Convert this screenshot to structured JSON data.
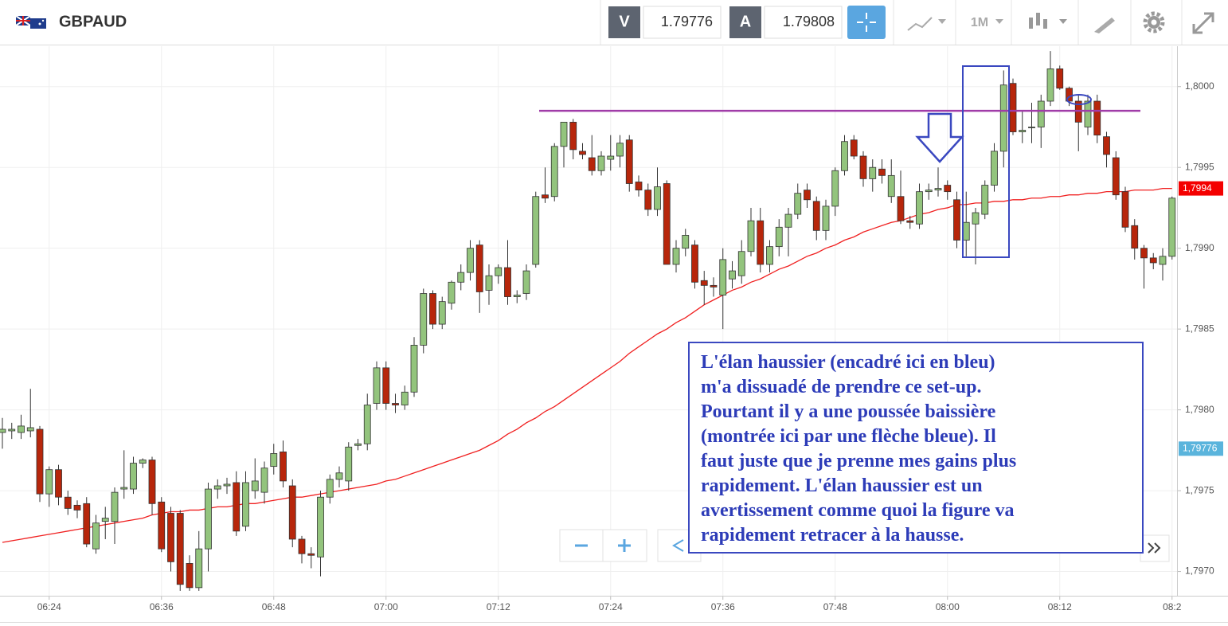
{
  "toolbar": {
    "symbol": "GBPAUD",
    "sell_label": "V",
    "sell_price": "1.79776",
    "buy_label": "A",
    "buy_price": "1.79808",
    "timeframe": "1M"
  },
  "chart_data": {
    "type": "candlestick",
    "categories": [
      null,
      null,
      null,
      null,
      null,
      "06:24",
      null,
      null,
      null,
      null,
      null,
      null,
      null,
      null,
      null,
      null,
      null,
      "06:36",
      null,
      null,
      null,
      null,
      null,
      null,
      null,
      null,
      null,
      null,
      null,
      "06:48",
      null,
      null,
      null,
      null,
      null,
      null,
      null,
      null,
      null,
      null,
      null,
      "07:00",
      null,
      null,
      null,
      null,
      null,
      null,
      null,
      null,
      null,
      null,
      null,
      "07:12",
      null,
      null,
      null,
      null,
      null,
      null,
      null,
      null,
      null,
      null,
      null,
      "07:24",
      null,
      null,
      null,
      null,
      null,
      null,
      null,
      null,
      null,
      null,
      null,
      "07:36",
      null,
      null,
      null,
      null,
      null,
      null,
      null,
      null,
      null,
      null,
      null,
      "07:48",
      null,
      null,
      null,
      null,
      null,
      null,
      null,
      null,
      null,
      null,
      null,
      "08:00",
      null,
      null,
      null,
      null,
      null,
      null,
      null,
      null,
      null,
      null,
      null,
      "08:12",
      null,
      null,
      null,
      null,
      null,
      null,
      null,
      null,
      null,
      null,
      null,
      "08:2"
    ],
    "ohlc": [
      [
        1.79786,
        1.79795,
        1.79776,
        1.79788
      ],
      [
        1.79787,
        1.79792,
        1.79782,
        1.79788
      ],
      [
        1.79786,
        1.79797,
        1.79782,
        1.7979
      ],
      [
        1.79787,
        1.79813,
        1.79783,
        1.79789
      ],
      [
        1.79788,
        1.7979,
        1.79743,
        1.79748
      ],
      [
        1.79748,
        1.79765,
        1.7974,
        1.79763
      ],
      [
        1.79763,
        1.79766,
        1.79741,
        1.79746
      ],
      [
        1.79746,
        1.7975,
        1.79735,
        1.79739
      ],
      [
        1.79741,
        1.79744,
        1.79733,
        1.79738
      ],
      [
        1.79742,
        1.79746,
        1.79715,
        1.79717
      ],
      [
        1.79714,
        1.79735,
        1.79711,
        1.7973
      ],
      [
        1.79731,
        1.7974,
        1.7972,
        1.79733
      ],
      [
        1.79731,
        1.79752,
        1.79717,
        1.79749
      ],
      [
        1.79751,
        1.79775,
        1.79745,
        1.79752
      ],
      [
        1.79751,
        1.79771,
        1.79748,
        1.79767
      ],
      [
        1.79767,
        1.7977,
        1.79764,
        1.79769
      ],
      [
        1.79769,
        1.79771,
        1.79735,
        1.79742
      ],
      [
        1.79743,
        1.79746,
        1.79712,
        1.79714
      ],
      [
        1.79736,
        1.7974,
        1.797,
        1.79706
      ],
      [
        1.79736,
        1.79738,
        1.79688,
        1.79692
      ],
      [
        1.79705,
        1.7971,
        1.79688,
        1.7969
      ],
      [
        1.7969,
        1.79725,
        1.79688,
        1.79714
      ],
      [
        1.79714,
        1.79755,
        1.797,
        1.79751
      ],
      [
        1.79751,
        1.79757,
        1.79745,
        1.79753
      ],
      [
        1.79753,
        1.79758,
        1.79748,
        1.79754
      ],
      [
        1.79755,
        1.79762,
        1.79722,
        1.79725
      ],
      [
        1.79728,
        1.79762,
        1.79725,
        1.79755
      ],
      [
        1.7975,
        1.7977,
        1.79745,
        1.79756
      ],
      [
        1.79749,
        1.79768,
        1.79742,
        1.79764
      ],
      [
        1.79765,
        1.79779,
        1.7976,
        1.79773
      ],
      [
        1.79774,
        1.79781,
        1.79752,
        1.79756
      ],
      [
        1.79753,
        1.79757,
        1.79715,
        1.7972
      ],
      [
        1.7972,
        1.79722,
        1.79705,
        1.79711
      ],
      [
        1.79711,
        1.79715,
        1.79702,
        1.7971
      ],
      [
        1.79709,
        1.7975,
        1.79697,
        1.79746
      ],
      [
        1.79746,
        1.7976,
        1.79742,
        1.79757
      ],
      [
        1.79757,
        1.79765,
        1.79752,
        1.79761
      ],
      [
        1.79756,
        1.7978,
        1.7975,
        1.79777
      ],
      [
        1.79778,
        1.79782,
        1.79775,
        1.79779
      ],
      [
        1.79779,
        1.7981,
        1.79775,
        1.79803
      ],
      [
        1.79804,
        1.7983,
        1.798,
        1.79826
      ],
      [
        1.79826,
        1.7983,
        1.798,
        1.79804
      ],
      [
        1.79804,
        1.7981,
        1.79798,
        1.79803
      ],
      [
        1.79803,
        1.79815,
        1.798,
        1.79811
      ],
      [
        1.79811,
        1.79845,
        1.79808,
        1.7984
      ],
      [
        1.7984,
        1.79875,
        1.79835,
        1.79872
      ],
      [
        1.79872,
        1.79874,
        1.7985,
        1.79853
      ],
      [
        1.79853,
        1.7987,
        1.7985,
        1.79867
      ],
      [
        1.79866,
        1.7988,
        1.79862,
        1.79879
      ],
      [
        1.79879,
        1.7989,
        1.79874,
        1.79885
      ],
      [
        1.79885,
        1.79905,
        1.7988,
        1.799
      ],
      [
        1.79902,
        1.79905,
        1.7986,
        1.79873
      ],
      [
        1.79874,
        1.7989,
        1.79865,
        1.79883
      ],
      [
        1.79883,
        1.7989,
        1.79878,
        1.79888
      ],
      [
        1.79888,
        1.79905,
        1.79865,
        1.7987
      ],
      [
        1.7987,
        1.79874,
        1.79866,
        1.79871
      ],
      [
        1.79872,
        1.7989,
        1.79868,
        1.79886
      ],
      [
        1.7989,
        1.79935,
        1.79888,
        1.79932
      ],
      [
        1.79933,
        1.7995,
        1.79928,
        1.79931
      ],
      [
        1.79932,
        1.79965,
        1.79929,
        1.79963
      ],
      [
        1.79963,
        1.79978,
        1.7995,
        1.79978
      ],
      [
        1.79978,
        1.7998,
        1.79955,
        1.79961
      ],
      [
        1.7996,
        1.79965,
        1.79955,
        1.79958
      ],
      [
        1.79956,
        1.7997,
        1.79945,
        1.79948
      ],
      [
        1.79948,
        1.7996,
        1.79945,
        1.79957
      ],
      [
        1.79955,
        1.7997,
        1.79948,
        1.79957
      ],
      [
        1.79957,
        1.7997,
        1.7995,
        1.79965
      ],
      [
        1.79967,
        1.7997,
        1.79935,
        1.7994
      ],
      [
        1.79941,
        1.79945,
        1.79932,
        1.79936
      ],
      [
        1.79936,
        1.7994,
        1.7992,
        1.79924
      ],
      [
        1.79924,
        1.7995,
        1.7992,
        1.79938
      ],
      [
        1.7994,
        1.79942,
        1.7989,
        1.7989
      ],
      [
        1.7989,
        1.79905,
        1.79885,
        1.799
      ],
      [
        1.799,
        1.79912,
        1.79895,
        1.79908
      ],
      [
        1.79902,
        1.79905,
        1.79875,
        1.79879
      ],
      [
        1.7988,
        1.79886,
        1.79865,
        1.79877
      ],
      [
        1.79877,
        1.79882,
        1.7987,
        1.79876
      ],
      [
        1.79871,
        1.799,
        1.7985,
        1.79893
      ],
      [
        1.79881,
        1.79892,
        1.79875,
        1.79886
      ],
      [
        1.79883,
        1.79905,
        1.79878,
        1.79898
      ],
      [
        1.79898,
        1.79925,
        1.79895,
        1.79917
      ],
      [
        1.79917,
        1.79925,
        1.79885,
        1.7989
      ],
      [
        1.7989,
        1.79905,
        1.79885,
        1.79901
      ],
      [
        1.79901,
        1.79918,
        1.79895,
        1.79913
      ],
      [
        1.79913,
        1.79925,
        1.79895,
        1.79921
      ],
      [
        1.79921,
        1.7994,
        1.79918,
        1.79934
      ],
      [
        1.79936,
        1.7994,
        1.79925,
        1.7993
      ],
      [
        1.79929,
        1.79932,
        1.79905,
        1.79911
      ],
      [
        1.79911,
        1.7993,
        1.79905,
        1.79926
      ],
      [
        1.79926,
        1.7995,
        1.7992,
        1.79948
      ],
      [
        1.79948,
        1.7997,
        1.79945,
        1.79966
      ],
      [
        1.79967,
        1.7997,
        1.79955,
        1.79957
      ],
      [
        1.79957,
        1.7996,
        1.79938,
        1.79943
      ],
      [
        1.79943,
        1.79955,
        1.79935,
        1.7995
      ],
      [
        1.79949,
        1.79955,
        1.7994,
        1.79945
      ],
      [
        1.79932,
        1.79955,
        1.79928,
        1.79945
      ],
      [
        1.79932,
        1.79948,
        1.79915,
        1.79917
      ],
      [
        1.79917,
        1.7992,
        1.79912,
        1.79916
      ],
      [
        1.79915,
        1.7994,
        1.79912,
        1.79935
      ],
      [
        1.79935,
        1.7994,
        1.7993,
        1.79936
      ],
      [
        1.79936,
        1.7995,
        1.79932,
        1.79937
      ],
      [
        1.79939,
        1.79942,
        1.7993,
        1.79935
      ],
      [
        1.7993,
        1.79935,
        1.799,
        1.79905
      ],
      [
        1.79905,
        1.79935,
        1.79895,
        1.79916
      ],
      [
        1.79915,
        1.79925,
        1.7989,
        1.79922
      ],
      [
        1.79921,
        1.79942,
        1.79918,
        1.79939
      ],
      [
        1.79939,
        1.79965,
        1.79935,
        1.7996
      ],
      [
        1.7996,
        1.8001,
        1.7995,
        1.80001
      ],
      [
        1.80002,
        1.80005,
        1.7997,
        1.79972
      ],
      [
        1.79972,
        1.79985,
        1.79965,
        1.79973
      ],
      [
        1.79975,
        1.7999,
        1.79965,
        1.79975
      ],
      [
        1.79975,
        1.79995,
        1.79962,
        1.79991
      ],
      [
        1.79991,
        1.80022,
        1.79988,
        1.80011
      ],
      [
        1.80011,
        1.80013,
        1.79998,
        1.79999
      ],
      [
        1.79999,
        1.8,
        1.79988,
        1.79991
      ],
      [
        1.79991,
        1.79995,
        1.7996,
        1.79978
      ],
      [
        1.79975,
        1.79995,
        1.7997,
        1.79991
      ],
      [
        1.79991,
        1.79995,
        1.79965,
        1.7997
      ],
      [
        1.79969,
        1.79972,
        1.7995,
        1.79958
      ],
      [
        1.79956,
        1.7996,
        1.7993,
        1.79933
      ],
      [
        1.79935,
        1.79938,
        1.7991,
        1.79913
      ],
      [
        1.79914,
        1.79918,
        1.79893,
        1.799
      ],
      [
        1.799,
        1.79902,
        1.79875,
        1.79894
      ],
      [
        1.79894,
        1.79897,
        1.79887,
        1.79891
      ],
      [
        1.7989,
        1.799,
        1.7988,
        1.79895
      ],
      [
        1.79895,
        1.79932,
        1.79893,
        1.79931
      ]
    ],
    "up_color": "#93c47d",
    "down_color": "#b7260b",
    "moving_average": {
      "color": "#f02020",
      "values": [
        1.79718,
        1.79719,
        1.7972,
        1.79721,
        1.79722,
        1.79723,
        1.79724,
        1.79725,
        1.79726,
        1.79727,
        1.79728,
        1.79729,
        1.7973,
        1.79731,
        1.79732,
        1.79733,
        1.79735,
        1.79736,
        1.79737,
        1.79737,
        1.79738,
        1.79738,
        1.79739,
        1.7974,
        1.7974,
        1.79741,
        1.79742,
        1.79742,
        1.79743,
        1.79744,
        1.79745,
        1.79746,
        1.79746,
        1.79747,
        1.79748,
        1.79749,
        1.7975,
        1.79751,
        1.79752,
        1.79753,
        1.79754,
        1.79756,
        1.79757,
        1.79759,
        1.79761,
        1.79763,
        1.79765,
        1.79767,
        1.79769,
        1.79771,
        1.79773,
        1.79775,
        1.79778,
        1.79781,
        1.79785,
        1.79788,
        1.79792,
        1.79795,
        1.79799,
        1.79802,
        1.79806,
        1.7981,
        1.79814,
        1.79818,
        1.79822,
        1.79826,
        1.7983,
        1.79835,
        1.79839,
        1.79843,
        1.79847,
        1.7985,
        1.79854,
        1.79857,
        1.79861,
        1.79865,
        1.79868,
        1.79871,
        1.79874,
        1.79876,
        1.79879,
        1.79881,
        1.79884,
        1.79887,
        1.79889,
        1.79892,
        1.79895,
        1.79897,
        1.799,
        1.79902,
        1.79905,
        1.79907,
        1.7991,
        1.79912,
        1.79914,
        1.79916,
        1.79917,
        1.79919,
        1.79921,
        1.79922,
        1.79924,
        1.79925,
        1.79927,
        1.79927,
        1.79928,
        1.79928,
        1.79929,
        1.79929,
        1.7993,
        1.7993,
        1.79931,
        1.79931,
        1.79932,
        1.79932,
        1.79933,
        1.79933,
        1.79934,
        1.79934,
        1.79935,
        1.79935,
        1.79935,
        1.79936,
        1.79936,
        1.79936,
        1.79937,
        1.79937
      ]
    },
    "resistance_level": {
      "value": 1.79985,
      "color": "#a03ca8"
    },
    "ylim": [
      1.79685,
      1.80025
    ],
    "yticks": [
      {
        "value": 1.797,
        "label": "1,7970"
      },
      {
        "value": 1.7975,
        "label": "1,7975"
      },
      {
        "value": 1.798,
        "label": "1,7980"
      },
      {
        "value": 1.7985,
        "label": "1,7985"
      },
      {
        "value": 1.799,
        "label": "1,7990"
      },
      {
        "value": 1.7995,
        "label": "1,7995"
      },
      {
        "value": 1.8,
        "label": "1,8000"
      }
    ],
    "grid": true,
    "price_labels": [
      {
        "value": 1.79937,
        "label": "1,7994",
        "color": "#f40000"
      },
      {
        "value": 1.79776,
        "label": "1,79776",
        "color": "#5ab4dc"
      }
    ],
    "annotation": [
      "L'élan haussier (encadré ici en bleu)",
      "m'a dissuadé de prendre ce set-up.",
      "Pourtant il y a une poussée baissière",
      "(montrée ici par une flèche bleue). Il",
      "faut juste que je prenne mes gains plus",
      "rapidement. L'élan haussier est un",
      "avertissement comme quoi la figure va",
      "rapidement retracer à la hausse."
    ]
  }
}
